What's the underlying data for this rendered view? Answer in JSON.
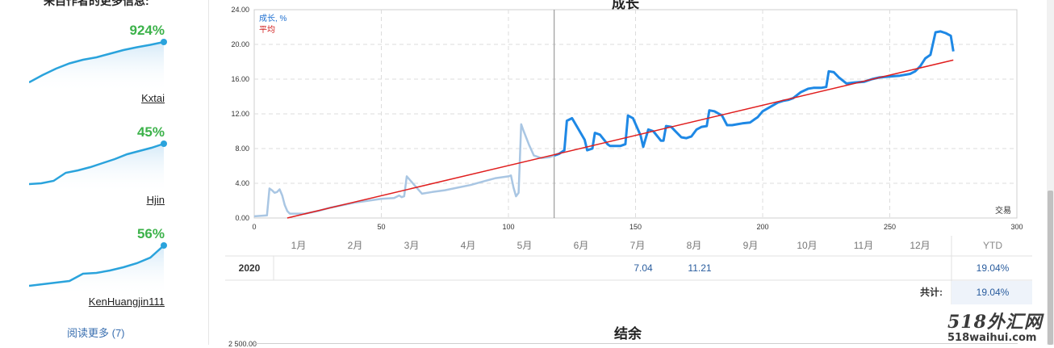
{
  "sidebar": {
    "heading": "来自作者的更多信息:",
    "authors": [
      {
        "growth": "924%",
        "name": "Kxtai",
        "spark": [
          0.0,
          0.18,
          0.34,
          0.47,
          0.56,
          0.62,
          0.71,
          0.8,
          0.87,
          0.93,
          1.0
        ]
      },
      {
        "growth": "45%",
        "name": "Hjin",
        "spark": [
          0.0,
          0.02,
          0.08,
          0.28,
          0.34,
          0.42,
          0.52,
          0.62,
          0.74,
          0.82,
          0.9,
          1.0
        ]
      },
      {
        "growth": "56%",
        "name": "KenHuangjin111",
        "spark": [
          0.0,
          0.04,
          0.08,
          0.12,
          0.3,
          0.32,
          0.38,
          0.46,
          0.56,
          0.7,
          1.0
        ]
      }
    ],
    "read_more": "阅读更多 (7)"
  },
  "growth_chart": {
    "title": "成长",
    "legend_growth": "成长, %",
    "legend_avg": "平均",
    "xlabel": "交易",
    "growth_color": "#1e88e5",
    "history_color": "#a9c6e3",
    "avg_color": "#e01e1e"
  },
  "chart_data": {
    "type": "line",
    "xlim": [
      0,
      300
    ],
    "ylim": [
      0,
      24
    ],
    "x_ticks": [
      "0",
      "50",
      "100",
      "150",
      "200",
      "250",
      "300"
    ],
    "y_ticks": [
      "0.00",
      "4.00",
      "8.00",
      "12.00",
      "16.00",
      "20.00",
      "24.00"
    ],
    "grid": true,
    "divider_x": 118,
    "series": [
      {
        "name": "成长, %",
        "x": [
          0,
          5,
          6,
          7,
          8,
          9,
          10,
          11,
          12,
          13,
          14,
          16,
          20,
          25,
          30,
          35,
          40,
          45,
          50,
          55,
          57,
          58,
          59,
          60,
          63,
          66,
          70,
          75,
          80,
          85,
          90,
          95,
          100,
          101,
          102,
          103,
          104,
          105,
          106,
          108,
          110,
          113,
          116,
          118,
          120,
          122,
          123,
          125,
          127,
          130,
          131,
          133,
          134,
          136,
          139,
          140,
          144,
          146,
          147,
          149,
          152,
          153,
          155,
          157,
          160,
          161,
          162,
          164,
          166,
          168,
          170,
          172,
          174,
          176,
          178,
          179,
          181,
          184,
          186,
          188,
          190,
          192,
          195,
          197,
          198,
          200,
          203,
          206,
          208,
          210,
          212,
          215,
          218,
          220,
          223,
          225,
          226,
          228,
          230,
          233,
          236,
          240,
          243,
          246,
          250,
          254,
          258,
          260,
          262,
          264,
          266,
          268,
          270,
          272,
          274,
          275
        ],
        "y": [
          0.2,
          0.3,
          3.4,
          3.2,
          2.9,
          3.0,
          3.3,
          2.6,
          1.5,
          0.8,
          0.5,
          0.5,
          0.5,
          0.8,
          1.2,
          1.5,
          1.8,
          2.0,
          2.2,
          2.3,
          2.6,
          2.4,
          2.5,
          4.8,
          3.8,
          2.8,
          3.0,
          3.2,
          3.5,
          3.8,
          4.2,
          4.6,
          4.8,
          4.9,
          3.5,
          2.5,
          2.9,
          10.8,
          10.0,
          8.5,
          7.2,
          6.9,
          7.0,
          7.2,
          7.4,
          7.8,
          11.2,
          11.5,
          10.5,
          9.0,
          7.8,
          8.0,
          9.8,
          9.6,
          8.5,
          8.3,
          8.3,
          8.5,
          11.8,
          11.5,
          9.5,
          8.2,
          10.2,
          10.0,
          8.9,
          8.9,
          10.6,
          10.5,
          9.9,
          9.3,
          9.2,
          9.4,
          10.2,
          10.5,
          10.6,
          12.4,
          12.3,
          11.8,
          10.7,
          10.7,
          10.8,
          10.9,
          11.0,
          11.4,
          11.6,
          12.3,
          12.8,
          13.3,
          13.5,
          13.6,
          13.8,
          14.5,
          14.9,
          15.0,
          15.0,
          15.1,
          16.9,
          16.8,
          16.2,
          15.5,
          15.6,
          15.7,
          16.0,
          16.2,
          16.3,
          16.4,
          16.6,
          16.9,
          17.5,
          18.4,
          18.8,
          21.4,
          21.5,
          21.3,
          21.0,
          19.2
        ]
      },
      {
        "name": "平均",
        "x": [
          13,
          275
        ],
        "y": [
          0.0,
          18.2
        ]
      }
    ]
  },
  "monthly_table": {
    "months": [
      "1月",
      "2月",
      "3月",
      "4月",
      "5月",
      "6月",
      "7月",
      "8月",
      "9月",
      "10月",
      "11月",
      "12月"
    ],
    "ytd_header": "YTD",
    "rows": [
      {
        "year": "2020",
        "values": [
          "",
          "",
          "",
          "",
          "",
          "",
          "7.04",
          "11.21",
          "",
          "",
          "",
          ""
        ],
        "ytd": "19.04%"
      }
    ],
    "total_label": "共计:",
    "total_value": "19.04%"
  },
  "balance_chart": {
    "title": "结余",
    "first_tick": "2 500.00"
  },
  "watermark": {
    "logo": "518外汇网",
    "url": "518waihui.com"
  }
}
